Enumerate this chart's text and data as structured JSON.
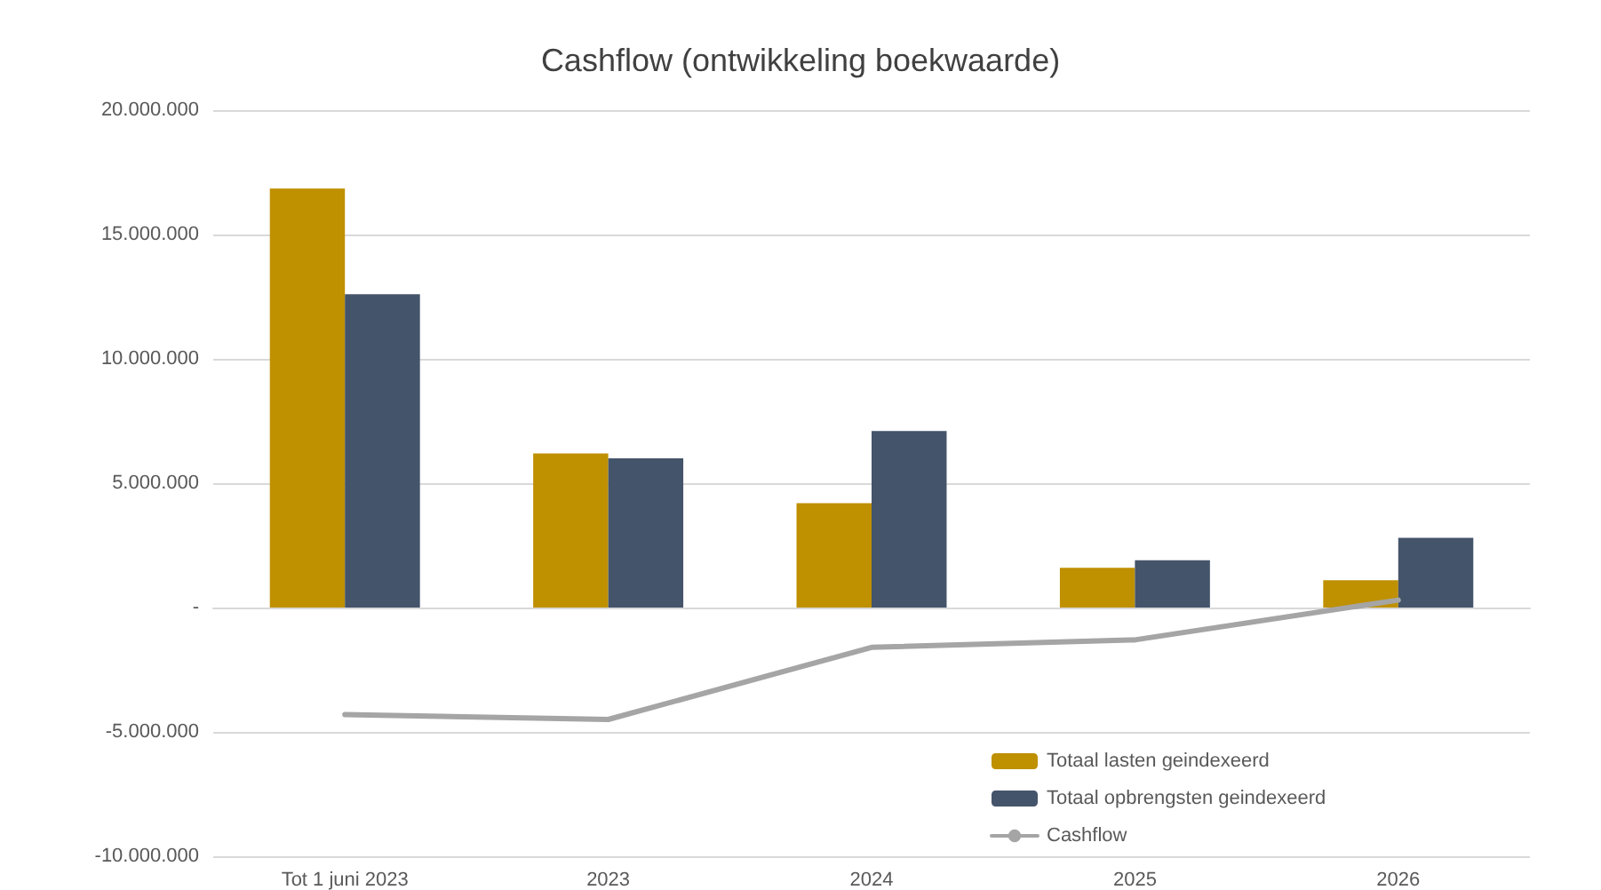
{
  "chart_data": {
    "type": "bar",
    "title": "Cashflow (ontwikkeling boekwaarde)",
    "categories": [
      "Tot 1 juni 2023",
      "2023",
      "2024",
      "2025",
      "2026"
    ],
    "series": [
      {
        "name": "Totaal lasten geindexeerd",
        "color": "#bf9000",
        "values": [
          16850000,
          6200000,
          4200000,
          1600000,
          1100000
        ]
      },
      {
        "name": "Totaal opbrengsten geindexeerd",
        "color": "#44546a",
        "values": [
          12600000,
          6000000,
          7100000,
          1900000,
          2800000
        ]
      },
      {
        "name": "Cashflow",
        "type": "line",
        "color": "#a5a5a5",
        "values": [
          -4300000,
          -4500000,
          -1600000,
          -1300000,
          300000
        ]
      }
    ],
    "ylim": [
      -10000000,
      20000000
    ],
    "yticks": [
      {
        "value": -10000000,
        "label": "-10.000.000"
      },
      {
        "value": -5000000,
        "label": "-5.000.000"
      },
      {
        "value": 0,
        "label": "-"
      },
      {
        "value": 5000000,
        "label": "5.000.000"
      },
      {
        "value": 10000000,
        "label": "10.000.000"
      },
      {
        "value": 15000000,
        "label": "15.000.000"
      },
      {
        "value": 20000000,
        "label": "20.000.000"
      }
    ],
    "grid": "y",
    "legend": "bottom right",
    "marker": "none",
    "line_style": "solid"
  }
}
